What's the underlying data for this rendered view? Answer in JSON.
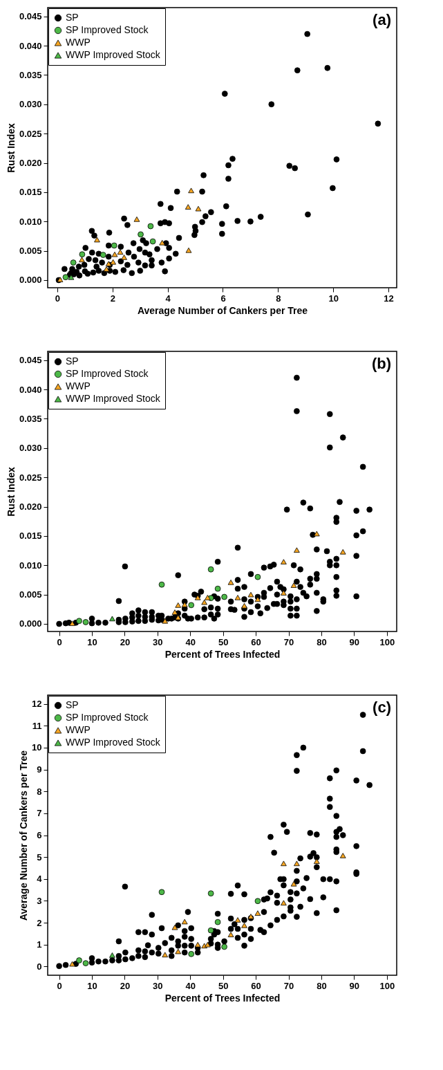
{
  "chart_data": [
    {
      "type": "scatter",
      "xlabel": "Average Number of Cankers per Tree",
      "ylabel": "Rust Index",
      "annotations": [
        "(a)"
      ],
      "legend": "top left",
      "xlim": [
        -0.35,
        12.3
      ],
      "xticks": [
        0,
        2,
        4,
        6,
        8,
        10,
        12
      ],
      "ylim": [
        -0.0013,
        0.0465
      ],
      "yticks": [
        {
          "value": 0,
          "label": "0.000"
        },
        0.005,
        {
          "value": 0.01,
          "label": "0.010"
        },
        0.015,
        {
          "value": 0.02,
          "label": "0.020"
        },
        0.025,
        {
          "value": 0.03,
          "label": "0.030"
        },
        0.035,
        {
          "value": 0.04,
          "label": "0.040"
        },
        0.045
      ],
      "series": [
        {
          "name": "SP",
          "color": "#000000",
          "marker": "circle",
          "x": [
            6.07,
            6.35,
            6.2,
            6.2,
            5.3,
            4.34,
            5.25,
            3.74,
            4.11,
            6.12,
            6.53,
            5.57,
            5.37,
            5.25,
            5.97,
            5.97,
            4.99,
            5.01,
            4.97,
            4.41,
            2.42,
            2.54,
            3.74,
            3.9,
            4.05,
            1.25,
            1.34,
            1.88,
            2.76,
            3.1,
            3.22,
            3.62,
            3.94,
            4.05,
            4.29,
            4.05,
            2.98,
            3.18,
            3.34,
            3.42,
            3.18,
            2.94,
            3.78,
            3.42,
            1.86,
            2.3,
            2.58,
            2.78,
            1.02,
            1.26,
            1.5,
            1.14,
            1.38,
            1.62,
            0.98,
            1.42,
            1.86,
            1.9,
            2.3,
            2.54,
            0.78,
            0.26,
            0.54,
            9.06,
            8.7,
            9.79,
            7.76,
            11.62,
            10.12,
            8.41,
            8.61,
            9.98,
            9.08,
            7.37,
            7.0,
            0.05,
            0.45,
            0.5,
            0.6,
            0.7,
            0.8,
            1.0,
            1.1,
            1.3,
            1.5,
            1.7,
            1.9,
            2.1,
            2.4,
            2.7,
            3.0,
            3.9
          ],
          "values": [
            0.0318,
            0.0207,
            0.0196,
            0.0173,
            0.0179,
            0.0151,
            0.0151,
            0.013,
            0.0123,
            0.0126,
            0.0101,
            0.0116,
            0.0109,
            0.0099,
            0.0096,
            0.0079,
            0.0091,
            0.0084,
            0.0077,
            0.0072,
            0.0105,
            0.0094,
            0.0097,
            0.0099,
            0.0097,
            0.0084,
            0.0076,
            0.0081,
            0.0063,
            0.0068,
            0.0063,
            0.0053,
            0.0063,
            0.0055,
            0.0045,
            0.0037,
            0.0053,
            0.0047,
            0.0044,
            0.0034,
            0.0025,
            0.003,
            0.003,
            0.0025,
            0.0059,
            0.0057,
            0.0047,
            0.004,
            0.0055,
            0.0047,
            0.0045,
            0.0036,
            0.0034,
            0.003,
            0.0026,
            0.0023,
            0.004,
            0.0026,
            0.0032,
            0.0026,
            0.0023,
            0.0019,
            0.0019,
            0.042,
            0.0358,
            0.0362,
            0.03,
            0.0267,
            0.0206,
            0.0195,
            0.0191,
            0.0157,
            0.0112,
            0.0108,
            0.01,
            0,
            0.0009,
            0.0012,
            0.001,
            0.0014,
            0.0008,
            0.0015,
            0.0011,
            0.0013,
            0.0016,
            0.0012,
            0.0016,
            0.0014,
            0.0017,
            0.0012,
            0.0016,
            0.0015
          ]
        },
        {
          "name": "SP Improved Stock",
          "color": "#4db848",
          "marker": "circle",
          "x": [
            3.38,
            3.02,
            3.46,
            2.06,
            1.66,
            0.9,
            0.58,
            0.3
          ],
          "values": [
            0.0092,
            0.0078,
            0.0066,
            0.0059,
            0.0043,
            0.0044,
            0.003,
            0.0005
          ]
        },
        {
          "name": "WWP",
          "color": "#f6a623",
          "marker": "triangle",
          "x": [
            4.85,
            4.74,
            5.11,
            2.88,
            3.8,
            4.76,
            1.44,
            2.08,
            2.28,
            2.42,
            0.89,
            2.02,
            1.86,
            1.78,
            0.1
          ],
          "values": [
            0.0153,
            0.0125,
            0.0122,
            0.0104,
            0.0064,
            0.0051,
            0.0069,
            0.0044,
            0.0048,
            0.0039,
            0.0035,
            0.0031,
            0.0028,
            0.0019,
            0.0001
          ]
        },
        {
          "name": "WWP Improved Stock",
          "color": "#4db848",
          "marker": "triangle",
          "x": [
            0.5
          ],
          "values": [
            0.0005
          ]
        }
      ]
    },
    {
      "type": "scatter",
      "xlabel": "Percent of Trees Infected",
      "ylabel": "Rust Index",
      "annotations": [
        "(b)"
      ],
      "legend": "top left",
      "xlim": [
        -3.5,
        103
      ],
      "xticks": [
        0,
        10,
        20,
        30,
        40,
        50,
        60,
        70,
        80,
        90,
        100
      ],
      "ylim": [
        -0.0013,
        0.0465
      ],
      "yticks": [
        {
          "value": 0,
          "label": "0.000"
        },
        0.005,
        {
          "value": 0.01,
          "label": "0.010"
        },
        0.015,
        {
          "value": 0.02,
          "label": "0.020"
        },
        0.025,
        {
          "value": 0.03,
          "label": "0.030"
        },
        0.035,
        {
          "value": 0.04,
          "label": "0.040"
        },
        0.045
      ],
      "series": [
        {
          "name": "SP",
          "color": "#000000",
          "marker": "circle",
          "x": [
            72.5,
            72.5,
            82.6,
            86.6,
            82.6,
            92.7,
            74.5,
            85.6,
            69.5,
            76.6,
            90.7,
            94.7,
            84.6,
            84.6,
            92.7,
            90.7,
            77.4,
            54.5,
            78.6,
            81.7,
            90.7,
            84.6,
            82.6,
            82.6,
            20.1,
            48.4,
            84.6,
            71.6,
            73.6,
            62.5,
            64.4,
            65.5,
            36.3,
            58.5,
            78.6,
            78.6,
            76.6,
            84.6,
            54.5,
            66.5,
            72.5,
            76.6,
            54.5,
            56.5,
            64.4,
            67.5,
            68.5,
            73.6,
            74.5,
            75.5,
            78.6,
            84.6,
            84.6,
            90.7,
            80.6,
            80.6,
            78.6,
            18.2,
            41.3,
            42.3,
            43.3,
            47.3,
            48.4,
            62.5,
            62.5,
            66.5,
            66.5,
            70.6,
            70.6,
            70.6,
            70.6,
            72.5,
            72.5,
            72.5,
            68.5,
            68.5,
            60.6,
            60.6,
            61.4,
            58.5,
            58.5,
            56.5,
            56.5,
            56.5,
            52.4,
            52.4,
            53.5,
            63.5,
            65.5,
            44.3,
            44.3,
            46.3,
            46.3,
            47.3,
            48.4,
            48.4,
            38.3,
            38.3,
            38.3,
            39.3,
            36.3,
            36.3,
            35.3,
            34.3,
            42.3,
            40.3,
            0,
            2,
            3,
            5.1,
            10,
            10,
            12,
            14.1,
            18.2,
            18.2,
            20.2,
            20.2,
            22.3,
            22.3,
            22.3,
            24.2,
            24.2,
            24.2,
            26.2,
            26.2,
            26.2,
            28.3,
            28.3,
            28.3,
            30.3,
            30.3,
            31.3,
            31.3,
            33.3
          ],
          "values": [
            0.042,
            0.0363,
            0.0358,
            0.0318,
            0.0301,
            0.0268,
            0.0207,
            0.0208,
            0.0195,
            0.0197,
            0.0193,
            0.0195,
            0.0181,
            0.0174,
            0.0158,
            0.0151,
            0.0152,
            0.013,
            0.0127,
            0.0124,
            0.0116,
            0.0111,
            0.0106,
            0.01,
            0.0098,
            0.0106,
            0.01,
            0.01,
            0.0093,
            0.0096,
            0.0098,
            0.0101,
            0.0083,
            0.0085,
            0.0085,
            0.0077,
            0.0077,
            0.008,
            0.0075,
            0.0072,
            0.0072,
            0.0067,
            0.006,
            0.0063,
            0.0061,
            0.0063,
            0.0059,
            0.0063,
            0.0053,
            0.0047,
            0.0053,
            0.0057,
            0.0048,
            0.0047,
            0.0042,
            0.0038,
            0.0022,
            0.0039,
            0.005,
            0.0048,
            0.0055,
            0.0047,
            0.0043,
            0.0053,
            0.0046,
            0.005,
            0.0034,
            0.0047,
            0.0038,
            0.0026,
            0.0014,
            0.0042,
            0.0026,
            0.0014,
            0.0038,
            0.0032,
            0.0046,
            0.003,
            0.0018,
            0.0038,
            0.002,
            0.0042,
            0.0026,
            0.0012,
            0.0038,
            0.0025,
            0.0024,
            0.0027,
            0.0034,
            0.0025,
            0.0011,
            0.0028,
            0.0016,
            0.0009,
            0.0026,
            0.0016,
            0.0038,
            0.0026,
            0.0014,
            0.0009,
            0.0018,
            0.0009,
            0.0011,
            0.0009,
            0.0011,
            0.0009,
            0,
            0.0001,
            0.0002,
            0.0002,
            0.0009,
            0.0001,
            0.0002,
            0.0002,
            0.0007,
            0.0003,
            0.0009,
            0.0003,
            0.0018,
            0.0011,
            0.0004,
            0.0023,
            0.0014,
            0.0005,
            0.002,
            0.0012,
            0.0005,
            0.002,
            0.0012,
            0.0007,
            0.0014,
            0.0006,
            0.0014,
            0.0007,
            0.0009
          ]
        },
        {
          "name": "SP Improved Stock",
          "color": "#4db848",
          "marker": "circle",
          "x": [
            6.1,
            8.1,
            31.3,
            40.3,
            46.3,
            48.4,
            46.3,
            50.4,
            60.6
          ],
          "values": [
            0.0005,
            0.0003,
            0.0067,
            0.0032,
            0.0093,
            0.006,
            0.0044,
            0.0046,
            0.008
          ]
        },
        {
          "name": "WWP",
          "color": "#f6a623",
          "marker": "triangle",
          "x": [
            4,
            32.3,
            36.3,
            35.3,
            36.3,
            38.3,
            42.3,
            44.3,
            45.3,
            52.4,
            54.5,
            56.5,
            58.5,
            60.6,
            68.5,
            68.5,
            71.6,
            72.5,
            78.6,
            86.6
          ],
          "values": [
            0.0001,
            0.0005,
            0.0032,
            0.002,
            0.0011,
            0.0033,
            0.0045,
            0.0037,
            0.0045,
            0.0071,
            0.0045,
            0.0031,
            0.005,
            0.0042,
            0.0053,
            0.0106,
            0.0066,
            0.0126,
            0.0154,
            0.0123
          ]
        },
        {
          "name": "WWP Improved Stock",
          "color": "#4db848",
          "marker": "triangle",
          "x": [
            16.2
          ],
          "values": [
            0.0009
          ]
        }
      ]
    },
    {
      "type": "scatter",
      "xlabel": "Percent of Trees Infected",
      "ylabel": "Average Number of Cankers per Tree",
      "annotations": [
        "(c)"
      ],
      "legend": "top left",
      "xlim": [
        -3.5,
        103
      ],
      "xticks": [
        0,
        10,
        20,
        30,
        40,
        50,
        60,
        70,
        80,
        90,
        100
      ],
      "ylim": [
        -0.4,
        12.4
      ],
      "yticks": [
        0,
        1,
        2,
        3,
        4,
        5,
        6,
        7,
        8,
        9,
        10,
        11,
        12
      ],
      "series": [
        {
          "name": "SP",
          "color": "#000000",
          "marker": "circle",
          "x": [
            92.7,
            74.5,
            72.5,
            92.7,
            72.5,
            84.6,
            82.6,
            90.7,
            94.7,
            82.6,
            82.6,
            84.6,
            68.5,
            69.5,
            64.5,
            76.6,
            78.6,
            84.6,
            85.6,
            86.6,
            84.6,
            90.7,
            65.6,
            84.6,
            84.6,
            73.6,
            76.6,
            77.6,
            78.6,
            78.6,
            72.5,
            90.7,
            90.7,
            68.5,
            67.5,
            72.5,
            75.5,
            80.6,
            82.6,
            84.6,
            68.5,
            54.5,
            20.1,
            52.4,
            56.5,
            64.5,
            62.5,
            63.5,
            70.6,
            72.5,
            74.5,
            66.5,
            66.5,
            76.6,
            80.6,
            70.6,
            70.6,
            70.6,
            73.6,
            72.5,
            78.6,
            84.6,
            62.5,
            39.3,
            28.3,
            48.4,
            68.5,
            66.5,
            64.5,
            61.4,
            62.5,
            52.4,
            53.5,
            54.5,
            56.5,
            56.5,
            56.5,
            58.5,
            58.5,
            58.5,
            52.4,
            54.5,
            31.3,
            36.3,
            38.3,
            38.3,
            40.3,
            24.2,
            26.2,
            28.3,
            18.2,
            47.3,
            48.4,
            47.3,
            46.3,
            46.3,
            48.4,
            48.4,
            50.4,
            34.3,
            36.3,
            36.3,
            38.3,
            40.3,
            40.3,
            32.3,
            42.3,
            42.3,
            38.3,
            34.3,
            34.3,
            27.1,
            30.3,
            30.3,
            28.3,
            24.2,
            26.2,
            24.2,
            26.2,
            20.2,
            22.3,
            20.2,
            18.2,
            18.2,
            16.2,
            14.1,
            12,
            10,
            10,
            2,
            0,
            5.1
          ],
          "values": [
            11.5,
            10,
            9.66,
            9.84,
            8.94,
            8.96,
            8.6,
            8.5,
            8.29,
            7.67,
            7.29,
            6.88,
            6.48,
            6.15,
            5.92,
            6.1,
            6.03,
            6.15,
            6.28,
            6,
            5.92,
            5.5,
            5.2,
            5.35,
            5.23,
            4.94,
            5.02,
            5.18,
            4.99,
            4.54,
            4.37,
            4.3,
            4.23,
            3.99,
            3.99,
            3.89,
            4.04,
            3.99,
            3.99,
            3.89,
            3.71,
            3.7,
            3.65,
            3.32,
            3.3,
            3.39,
            3.06,
            3.11,
            3.4,
            3.34,
            3.57,
            3.24,
            2.91,
            3.08,
            3.16,
            3.06,
            2.7,
            2.55,
            2.73,
            2.27,
            2.44,
            2.57,
            2.49,
            2.49,
            2.36,
            2.41,
            2.29,
            2.13,
            1.88,
            1.67,
            1.57,
            2.19,
            1.93,
            1.72,
            2.13,
            1.46,
            0.95,
            2.21,
            1.72,
            1.26,
            1.72,
            1.31,
            1.75,
            1.88,
            1.62,
            1.36,
            1.75,
            1.57,
            1.57,
            1.46,
            1.15,
            1.62,
            1.57,
            1.46,
            1.26,
            1.05,
            1,
            0.85,
            1.15,
            1.31,
            1.15,
            0.95,
            0.95,
            1.26,
            0.95,
            1.07,
            0.85,
            0.64,
            0.64,
            0.74,
            0.48,
            0.97,
            0.85,
            0.59,
            0.64,
            0.74,
            0.69,
            0.48,
            0.43,
            0.64,
            0.38,
            0.33,
            0.48,
            0.28,
            0.28,
            0.23,
            0.23,
            0.38,
            0.18,
            0.07,
            0.02,
            0.12
          ]
        },
        {
          "name": "SP Improved Stock",
          "color": "#4db848",
          "marker": "circle",
          "x": [
            6.1,
            8.1,
            31.3,
            46.3,
            60.6,
            48.4,
            46.3,
            40.3,
            50.4
          ],
          "values": [
            0.28,
            0.15,
            3.4,
            3.34,
            2.99,
            2.03,
            1.65,
            0.57,
            0.9
          ]
        },
        {
          "name": "WWP",
          "color": "#f6a623",
          "marker": "triangle",
          "x": [
            4,
            32.3,
            36.3,
            35.3,
            38.3,
            42.3,
            44.3,
            45.3,
            52.4,
            54.5,
            56.5,
            58.5,
            60.6,
            68.5,
            68.5,
            71.6,
            72.5,
            78.6,
            86.6
          ],
          "values": [
            0.12,
            0.54,
            0.69,
            1.79,
            2.05,
            1,
            0.95,
            1,
            1.46,
            2.13,
            1.88,
            2.29,
            2.44,
            2.91,
            4.71,
            3.78,
            4.71,
            4.81,
            5.07
          ]
        },
        {
          "name": "WWP Improved Stock",
          "color": "#4db848",
          "marker": "triangle",
          "x": [
            16.2
          ],
          "values": [
            0.52
          ]
        }
      ]
    }
  ]
}
